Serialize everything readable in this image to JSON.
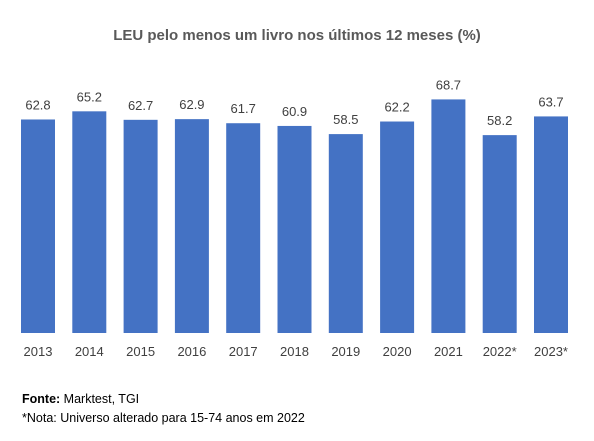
{
  "chart_data": {
    "type": "bar",
    "title": "LEU pelo menos um livro nos últimos 12 meses (%)",
    "categories": [
      "2013",
      "2014",
      "2015",
      "2016",
      "2017",
      "2018",
      "2019",
      "2020",
      "2021",
      "2022*",
      "2023*"
    ],
    "values": [
      62.8,
      65.2,
      62.7,
      62.9,
      61.7,
      60.9,
      58.5,
      62.2,
      68.7,
      58.2,
      63.7
    ],
    "data_labels": [
      "62.8",
      "65.2",
      "62.7",
      "62.9",
      "61.7",
      "60.9",
      "58.5",
      "62.2",
      "68.7",
      "58.2",
      "63.7"
    ],
    "bar_color": "#4472C4",
    "ylim": [
      0,
      70
    ],
    "grid": false,
    "legend": "none"
  },
  "footer": {
    "source_label": "Fonte:",
    "source_text": " Marktest, TGI",
    "note": "*Nota: Universo alterado para 15-74 anos em 2022"
  }
}
